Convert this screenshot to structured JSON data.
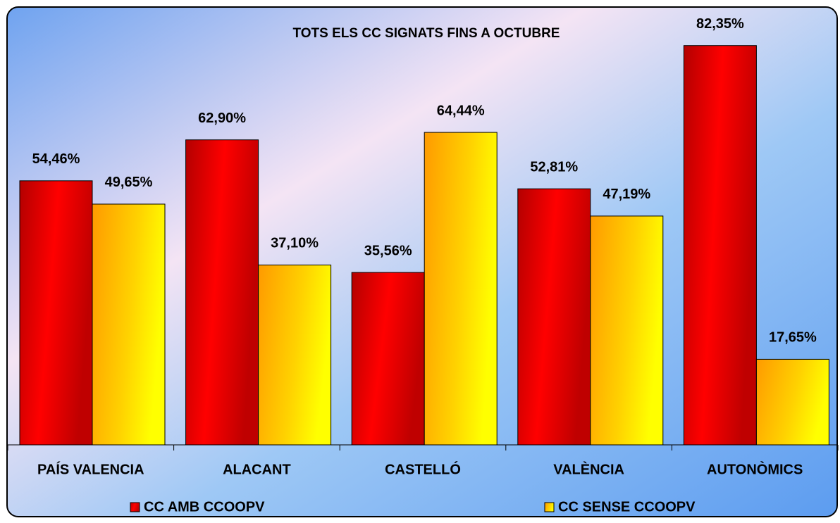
{
  "chart_data": {
    "type": "bar",
    "title": "TOTS ELS CC SIGNATS FINS A OCTUBRE",
    "categories": [
      "PAÍS VALENCIA",
      "ALACANT",
      "CASTELLÓ",
      "VALÈNCIA",
      "AUTONÒMICS"
    ],
    "series": [
      {
        "name": "CC AMB CCOOPV",
        "color": "#ff0000",
        "values": [
          54.46,
          62.9,
          35.56,
          52.81,
          82.35
        ],
        "value_labels": [
          "54,46%",
          "62,90%",
          "35,56%",
          "52,81%",
          "82,35%"
        ]
      },
      {
        "name": "CC SENSE CCOOPV",
        "color": "#ffd200",
        "values": [
          49.65,
          37.1,
          64.44,
          47.19,
          17.65
        ],
        "value_labels": [
          "49,65%",
          "37,10%",
          "64,44%",
          "47,19%",
          "17,65%"
        ]
      }
    ],
    "ylim": [
      0,
      90
    ],
    "legend": "bottom"
  }
}
